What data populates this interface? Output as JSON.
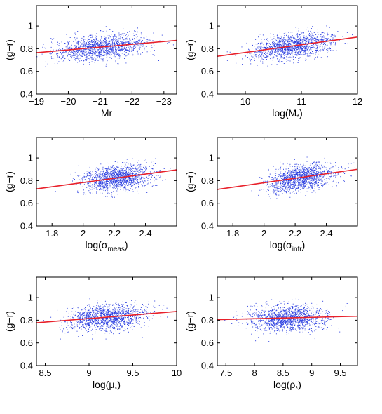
{
  "figure": {
    "background": "#ffffff"
  },
  "style": {
    "point_color": "#2b3fe0",
    "fit_color": "#e8202a"
  },
  "chart_data": [
    {
      "type": "scatter",
      "xlabel": "Mr",
      "xsub": "",
      "xclose": "",
      "ylabel": "(g−r)",
      "xlim": [
        -19,
        -23.4
      ],
      "ylim": [
        0.4,
        1.18
      ],
      "reverse_x": true,
      "xticks": [
        -19,
        -20,
        -21,
        -22,
        -23
      ],
      "xtick_labels": [
        "−19",
        "−20",
        "−21",
        "−22",
        "−23"
      ],
      "yticks": [
        0.4,
        0.6,
        0.8,
        1.0
      ],
      "ytick_labels": [
        "0.4",
        "0.6",
        "0.8",
        "1"
      ],
      "fit_line": {
        "x": [
          -19,
          -23.4
        ],
        "y": [
          0.765,
          0.873
        ]
      },
      "cloud": {
        "center_x": -21.0,
        "spread_x": 0.7,
        "center_y": 0.82,
        "spread_y": 0.055,
        "n": 1400
      }
    },
    {
      "type": "scatter",
      "xlabel": "log(M",
      "xsub": "*",
      "xclose": ")",
      "ylabel": "(g−r)",
      "xlim": [
        9.5,
        12
      ],
      "ylim": [
        0.4,
        1.18
      ],
      "reverse_x": false,
      "xticks": [
        10,
        11,
        12
      ],
      "xtick_labels": [
        "10",
        "11",
        "12"
      ],
      "yticks": [
        0.4,
        0.6,
        0.8,
        1.0
      ],
      "ytick_labels": [
        "0.4",
        "0.6",
        "0.8",
        "1"
      ],
      "fit_line": {
        "x": [
          9.5,
          12
        ],
        "y": [
          0.733,
          0.903
        ]
      },
      "cloud": {
        "center_x": 10.85,
        "spread_x": 0.35,
        "center_y": 0.82,
        "spread_y": 0.055,
        "n": 1400
      }
    },
    {
      "type": "scatter",
      "xlabel": "log(σ",
      "xsub": "meas",
      "xclose": ")",
      "ylabel": "(g−r)",
      "xlim": [
        1.7,
        2.6
      ],
      "ylim": [
        0.4,
        1.18
      ],
      "reverse_x": false,
      "xticks": [
        1.8,
        2.0,
        2.2,
        2.4
      ],
      "xtick_labels": [
        "1.8",
        "2",
        "2.2",
        "2.4"
      ],
      "yticks": [
        0.4,
        0.6,
        0.8,
        1.0
      ],
      "ytick_labels": [
        "0.4",
        "0.6",
        "0.8",
        "1"
      ],
      "fit_line": {
        "x": [
          1.7,
          2.6
        ],
        "y": [
          0.727,
          0.895
        ]
      },
      "cloud": {
        "center_x": 2.22,
        "spread_x": 0.11,
        "center_y": 0.82,
        "spread_y": 0.055,
        "n": 1400
      }
    },
    {
      "type": "scatter",
      "xlabel": "log(σ",
      "xsub": "infr",
      "xclose": ")",
      "ylabel": "(g−r)",
      "xlim": [
        1.7,
        2.6
      ],
      "ylim": [
        0.4,
        1.18
      ],
      "reverse_x": false,
      "xticks": [
        1.8,
        2.0,
        2.2,
        2.4
      ],
      "xtick_labels": [
        "1.8",
        "2",
        "2.2",
        "2.4"
      ],
      "yticks": [
        0.4,
        0.6,
        0.8,
        1.0
      ],
      "ytick_labels": [
        "0.4",
        "0.6",
        "0.8",
        "1"
      ],
      "fit_line": {
        "x": [
          1.7,
          2.6
        ],
        "y": [
          0.722,
          0.9
        ]
      },
      "cloud": {
        "center_x": 2.23,
        "spread_x": 0.11,
        "center_y": 0.82,
        "spread_y": 0.055,
        "n": 1400
      }
    },
    {
      "type": "scatter",
      "xlabel": "log(μ",
      "xsub": "*",
      "xclose": ")",
      "ylabel": "(g−r)",
      "xlim": [
        8.4,
        10
      ],
      "ylim": [
        0.4,
        1.18
      ],
      "reverse_x": false,
      "xticks": [
        8.5,
        9.0,
        9.5,
        10.0
      ],
      "xtick_labels": [
        "8.5",
        "9",
        "9.5",
        "10"
      ],
      "yticks": [
        0.4,
        0.6,
        0.8,
        1.0
      ],
      "ytick_labels": [
        "0.4",
        "0.6",
        "0.8",
        "1"
      ],
      "fit_line": {
        "x": [
          8.4,
          10
        ],
        "y": [
          0.777,
          0.877
        ]
      },
      "cloud": {
        "center_x": 9.2,
        "spread_x": 0.22,
        "center_y": 0.82,
        "spread_y": 0.055,
        "n": 1400
      }
    },
    {
      "type": "scatter",
      "xlabel": "log(ρ",
      "xsub": "*",
      "xclose": ")",
      "ylabel": "(g−r)",
      "xlim": [
        7.35,
        9.8
      ],
      "ylim": [
        0.4,
        1.18
      ],
      "reverse_x": false,
      "xticks": [
        7.5,
        8.0,
        8.5,
        9.0,
        9.5
      ],
      "xtick_labels": [
        "7.5",
        "8",
        "8.5",
        "9",
        "9.5"
      ],
      "yticks": [
        0.4,
        0.6,
        0.8,
        1.0
      ],
      "ytick_labels": [
        "0.4",
        "0.6",
        "0.8",
        "1"
      ],
      "fit_line": {
        "x": [
          7.35,
          9.8
        ],
        "y": [
          0.805,
          0.835
        ]
      },
      "cloud": {
        "center_x": 8.58,
        "spread_x": 0.32,
        "center_y": 0.82,
        "spread_y": 0.055,
        "n": 1400
      }
    }
  ]
}
